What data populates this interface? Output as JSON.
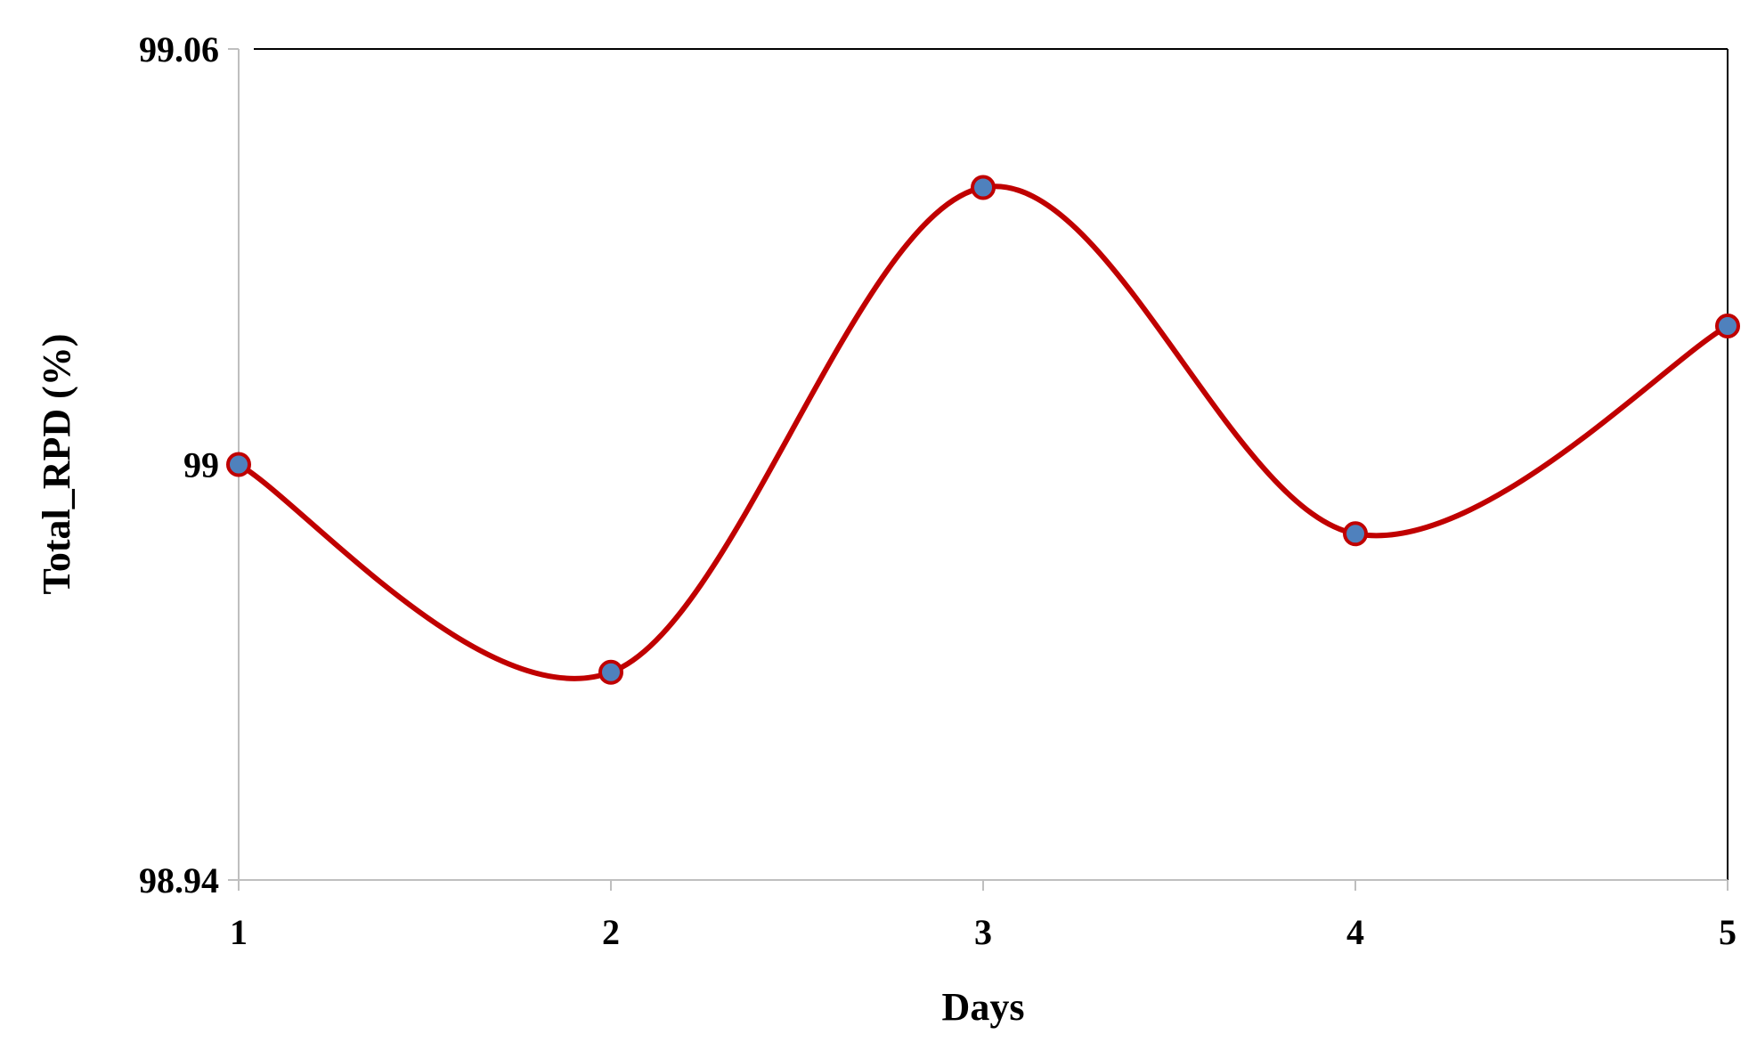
{
  "chart_data": {
    "type": "line",
    "title": "",
    "xlabel": "Days",
    "ylabel": "Total_RPD (%)",
    "x": [
      1,
      2,
      3,
      4,
      5
    ],
    "x_tick_labels": [
      "1",
      "2",
      "3",
      "4",
      "5"
    ],
    "y_tick_labels": [
      "99.06",
      "99",
      "98.94"
    ],
    "y_ticks": [
      99.06,
      99,
      98.94
    ],
    "ylim": [
      98.94,
      99.06
    ],
    "series": [
      {
        "values": [
          99.0,
          98.97,
          99.04,
          98.99,
          99.02
        ]
      }
    ],
    "smooth": true,
    "grid": false,
    "legend": "none",
    "colors": {
      "line": "#c00000",
      "marker_fill": "#4f81bd",
      "marker_edge": "#c00000",
      "axis": "#bfbfbf",
      "frame": "#000000"
    }
  }
}
